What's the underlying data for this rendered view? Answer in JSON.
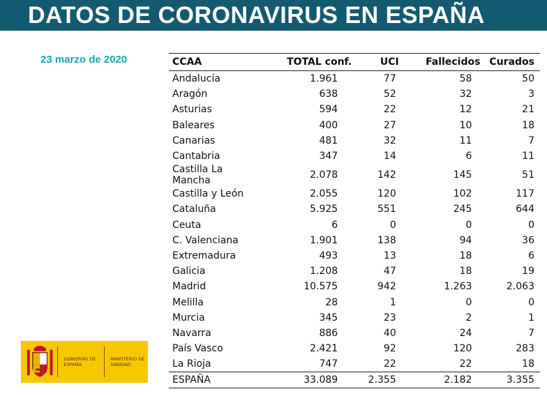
{
  "title": "DATOS DE CORONAVIRUS EN ESPAÑA",
  "date": "23 marzo de 2020",
  "table": {
    "headers": {
      "ccaa": "CCAA",
      "total": "TOTAL conf.",
      "uci": "UCI",
      "fallecidos": "Fallecidos",
      "curados": "Curados"
    },
    "rows": [
      {
        "ccaa": "Andalucía",
        "total": "1.961",
        "uci": "77",
        "fallecidos": "58",
        "curados": "50"
      },
      {
        "ccaa": "Aragón",
        "total": "638",
        "uci": "52",
        "fallecidos": "32",
        "curados": "3"
      },
      {
        "ccaa": "Asturias",
        "total": "594",
        "uci": "22",
        "fallecidos": "12",
        "curados": "21"
      },
      {
        "ccaa": "Baleares",
        "total": "400",
        "uci": "27",
        "fallecidos": "10",
        "curados": "18"
      },
      {
        "ccaa": "Canarias",
        "total": "481",
        "uci": "32",
        "fallecidos": "11",
        "curados": "7"
      },
      {
        "ccaa": "Cantabria",
        "total": "347",
        "uci": "14",
        "fallecidos": "6",
        "curados": "11"
      },
      {
        "ccaa": "Castilla La Mancha",
        "total": "2.078",
        "uci": "142",
        "fallecidos": "145",
        "curados": "51"
      },
      {
        "ccaa": "Castilla y León",
        "total": "2.055",
        "uci": "120",
        "fallecidos": "102",
        "curados": "117"
      },
      {
        "ccaa": "Cataluña",
        "total": "5.925",
        "uci": "551",
        "fallecidos": "245",
        "curados": "644"
      },
      {
        "ccaa": "Ceuta",
        "total": "6",
        "uci": "0",
        "fallecidos": "0",
        "curados": "0"
      },
      {
        "ccaa": "C. Valenciana",
        "total": "1.901",
        "uci": "138",
        "fallecidos": "94",
        "curados": "36"
      },
      {
        "ccaa": "Extremadura",
        "total": "493",
        "uci": "13",
        "fallecidos": "18",
        "curados": "6"
      },
      {
        "ccaa": "Galicia",
        "total": "1.208",
        "uci": "47",
        "fallecidos": "18",
        "curados": "19"
      },
      {
        "ccaa": "Madrid",
        "total": "10.575",
        "uci": "942",
        "fallecidos": "1.263",
        "curados": "2.063"
      },
      {
        "ccaa": "Melilla",
        "total": "28",
        "uci": "1",
        "fallecidos": "0",
        "curados": "0"
      },
      {
        "ccaa": "Murcia",
        "total": "345",
        "uci": "23",
        "fallecidos": "2",
        "curados": "1"
      },
      {
        "ccaa": "Navarra",
        "total": "886",
        "uci": "40",
        "fallecidos": "24",
        "curados": "7"
      },
      {
        "ccaa": "País Vasco",
        "total": "2.421",
        "uci": "92",
        "fallecidos": "120",
        "curados": "283"
      },
      {
        "ccaa": "La Rioja",
        "total": "747",
        "uci": "22",
        "fallecidos": "22",
        "curados": "18"
      }
    ],
    "total_row": {
      "ccaa": "ESPAÑA",
      "total": "33.089",
      "uci": "2.355",
      "fallecidos": "2.182",
      "curados": "3.355"
    }
  },
  "logo": {
    "gobierno": "GOBIERNO DE ESPAÑA",
    "ministerio": "MINISTERIO DE SANIDAD",
    "icon": "coat-of-arms-icon"
  },
  "colors": {
    "banner": "#135a70",
    "date": "#18a7ad",
    "logo_bg": "#f6c800"
  }
}
